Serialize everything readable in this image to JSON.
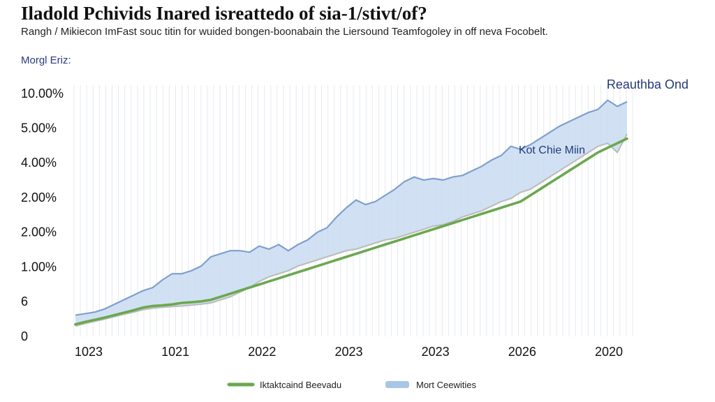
{
  "chart_data": {
    "type": "area",
    "title": "Iladold Pchivids Inared isreattedo of sia-1/stivt/of?",
    "subtitle": "Rangh / Mikiecon ImFast souc titin for wuided bongen-boonabain the Liersound Teamfogoley in off neva Focobelt.",
    "panel_label": "Morgl Eriz:",
    "y_tick_labels": [
      "10.00%",
      "5.00%",
      "4.00%",
      "2.00%",
      "2.00%",
      "1.00%",
      "6",
      "0"
    ],
    "x_tick_labels": [
      "1023",
      "1021",
      "2022",
      "2023",
      "2023",
      "2026",
      "2020"
    ],
    "grid": "vertical",
    "annotations": [
      {
        "text": "Reauthba Ond",
        "near": "upper series end"
      },
      {
        "text": "Kot Chie Miin",
        "near": "upper series right"
      }
    ],
    "legend": [
      {
        "label": "Iktaktcaind Beevadu",
        "color": "#6aa84f",
        "style": "line"
      },
      {
        "label": "Mort Ceewities",
        "color": "#a9c6e6",
        "style": "band"
      }
    ],
    "legend_position": "bottom",
    "series": [
      {
        "name": "Mort Ceewities",
        "role": "upper",
        "color": "#7f9fcf",
        "values": [
          0.6,
          0.65,
          0.7,
          0.8,
          0.95,
          1.1,
          1.25,
          1.4,
          1.5,
          1.75,
          1.95,
          1.95,
          2.05,
          2.2,
          2.5,
          2.6,
          2.7,
          2.7,
          2.65,
          2.85,
          2.75,
          2.9,
          2.7,
          2.9,
          3.05,
          3.3,
          3.45,
          3.8,
          4.1,
          4.35,
          4.2,
          4.3,
          4.5,
          4.7,
          4.95,
          5.1,
          5.0,
          5.05,
          5.0,
          5.1,
          5.15,
          5.3,
          5.45,
          5.65,
          5.8,
          6.1,
          6.0,
          6.15,
          6.35,
          6.55,
          6.75,
          6.9,
          7.05,
          7.2,
          7.3,
          7.6,
          7.4,
          7.55
        ]
      },
      {
        "name": "Iktaktcaind Beevadu",
        "role": "main",
        "color": "#6aa84f",
        "values": [
          0.3,
          0.38,
          0.45,
          0.52,
          0.6,
          0.68,
          0.76,
          0.85,
          0.9,
          0.92,
          0.95,
          1.0,
          1.02,
          1.05,
          1.1,
          1.2,
          1.3,
          1.4,
          1.5,
          1.6,
          1.7,
          1.8,
          1.9,
          2.0,
          2.1,
          2.2,
          2.3,
          2.4,
          2.5,
          2.6,
          2.7,
          2.8,
          2.9,
          3.0,
          3.1,
          3.2,
          3.3,
          3.4,
          3.5,
          3.6,
          3.7,
          3.8,
          3.9,
          4.0,
          4.1,
          4.2,
          4.3,
          4.5,
          4.7,
          4.9,
          5.1,
          5.3,
          5.5,
          5.7,
          5.9,
          6.05,
          6.2,
          6.35
        ]
      },
      {
        "name": "Lower band",
        "role": "lower",
        "color": "#c0c0c0",
        "values": [
          0.25,
          0.33,
          0.4,
          0.47,
          0.55,
          0.63,
          0.7,
          0.78,
          0.83,
          0.86,
          0.88,
          0.9,
          0.93,
          0.96,
          1.0,
          1.1,
          1.2,
          1.35,
          1.5,
          1.7,
          1.85,
          1.95,
          2.05,
          2.2,
          2.3,
          2.4,
          2.5,
          2.6,
          2.7,
          2.75,
          2.85,
          2.95,
          3.05,
          3.1,
          3.2,
          3.3,
          3.4,
          3.5,
          3.55,
          3.65,
          3.8,
          3.9,
          4.0,
          4.15,
          4.3,
          4.4,
          4.6,
          4.7,
          4.9,
          5.1,
          5.3,
          5.5,
          5.7,
          5.9,
          6.1,
          6.2,
          5.9,
          6.5
        ]
      }
    ],
    "ylim": [
      0,
      8
    ]
  }
}
